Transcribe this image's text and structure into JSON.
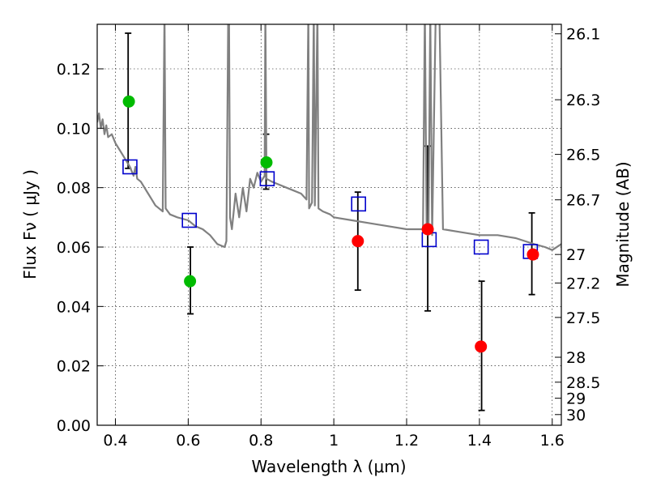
{
  "chart_data": {
    "type": "scatter",
    "xlabel": "Wavelength  λ (μm)",
    "ylabel": "Flux  Fν  ( μJy )",
    "ylabel_right": "Magnitude (AB)",
    "xlim": [
      0.35,
      1.625
    ],
    "ylim": [
      0.0,
      0.135
    ],
    "grid": true,
    "x_ticks": [
      0.4,
      0.6,
      0.8,
      1.0,
      1.2,
      1.4,
      1.6
    ],
    "x_tick_labels": [
      "0.4",
      "0.6",
      "0.8",
      "1",
      "1.2",
      "1.4",
      "1.6"
    ],
    "y_ticks": [
      0.0,
      0.02,
      0.04,
      0.06,
      0.08,
      0.1,
      0.12
    ],
    "y_tick_labels": [
      "0.00",
      "0.02",
      "0.04",
      "0.06",
      "0.08",
      "0.10",
      "0.12"
    ],
    "right_ticks": [
      {
        "label": "26.1",
        "flux": 0.1318
      },
      {
        "label": "26.3",
        "flux": 0.1096
      },
      {
        "label": "26.5",
        "flux": 0.0912
      },
      {
        "label": "26.7",
        "flux": 0.0759
      },
      {
        "label": "27",
        "flux": 0.0575
      },
      {
        "label": "27.2",
        "flux": 0.0479
      },
      {
        "label": "27.5",
        "flux": 0.0363
      },
      {
        "label": "28",
        "flux": 0.0229
      },
      {
        "label": "28.5",
        "flux": 0.0145
      },
      {
        "label": "29",
        "flux": 0.0091
      },
      {
        "label": "30",
        "flux": 0.0036
      }
    ],
    "series": [
      {
        "type": "errorbar",
        "color": "#000000",
        "points": [
          {
            "x": 0.435,
            "ylo": 0.0865,
            "yhi": 0.132
          },
          {
            "x": 0.606,
            "ylo": 0.0375,
            "yhi": 0.06
          },
          {
            "x": 0.814,
            "ylo": 0.0795,
            "yhi": 0.098
          },
          {
            "x": 1.066,
            "ylo": 0.0455,
            "yhi": 0.0785
          },
          {
            "x": 1.258,
            "ylo": 0.0385,
            "yhi": 0.094
          },
          {
            "x": 1.406,
            "ylo": 0.005,
            "yhi": 0.0485
          },
          {
            "x": 1.544,
            "ylo": 0.044,
            "yhi": 0.0715
          }
        ]
      },
      {
        "type": "line",
        "color": "#808080",
        "points": [
          [
            0.35,
            0.102
          ],
          [
            0.355,
            0.105
          ],
          [
            0.36,
            0.1
          ],
          [
            0.365,
            0.103
          ],
          [
            0.37,
            0.098
          ],
          [
            0.375,
            0.101
          ],
          [
            0.38,
            0.097
          ],
          [
            0.39,
            0.098
          ],
          [
            0.4,
            0.095
          ],
          [
            0.41,
            0.093
          ],
          [
            0.42,
            0.091
          ],
          [
            0.43,
            0.089
          ],
          [
            0.44,
            0.087
          ],
          [
            0.45,
            0.084
          ],
          [
            0.455,
            0.087
          ],
          [
            0.46,
            0.083
          ],
          [
            0.47,
            0.082
          ],
          [
            0.48,
            0.08
          ],
          [
            0.49,
            0.078
          ],
          [
            0.5,
            0.076
          ],
          [
            0.51,
            0.074
          ],
          [
            0.52,
            0.073
          ],
          [
            0.53,
            0.072
          ],
          [
            0.535,
            0.14
          ],
          [
            0.538,
            0.073
          ],
          [
            0.55,
            0.071
          ],
          [
            0.57,
            0.07
          ],
          [
            0.6,
            0.069
          ],
          [
            0.62,
            0.067
          ],
          [
            0.64,
            0.066
          ],
          [
            0.66,
            0.064
          ],
          [
            0.68,
            0.061
          ],
          [
            0.7,
            0.06
          ],
          [
            0.705,
            0.062
          ],
          [
            0.71,
            0.14
          ],
          [
            0.712,
            0.14
          ],
          [
            0.715,
            0.07
          ],
          [
            0.72,
            0.066
          ],
          [
            0.73,
            0.078
          ],
          [
            0.74,
            0.07
          ],
          [
            0.75,
            0.08
          ],
          [
            0.76,
            0.072
          ],
          [
            0.77,
            0.083
          ],
          [
            0.78,
            0.08
          ],
          [
            0.79,
            0.085
          ],
          [
            0.8,
            0.082
          ],
          [
            0.81,
            0.084
          ],
          [
            0.812,
            0.14
          ],
          [
            0.815,
            0.083
          ],
          [
            0.83,
            0.082
          ],
          [
            0.85,
            0.081
          ],
          [
            0.87,
            0.08
          ],
          [
            0.89,
            0.079
          ],
          [
            0.91,
            0.078
          ],
          [
            0.925,
            0.076
          ],
          [
            0.93,
            0.14
          ],
          [
            0.932,
            0.073
          ],
          [
            0.94,
            0.075
          ],
          [
            0.945,
            0.14
          ],
          [
            0.948,
            0.074
          ],
          [
            0.955,
            0.14
          ],
          [
            0.958,
            0.073
          ],
          [
            0.97,
            0.072
          ],
          [
            0.99,
            0.071
          ],
          [
            1.0,
            0.07
          ],
          [
            1.05,
            0.069
          ],
          [
            1.1,
            0.068
          ],
          [
            1.15,
            0.067
          ],
          [
            1.2,
            0.066
          ],
          [
            1.245,
            0.066
          ],
          [
            1.25,
            0.14
          ],
          [
            1.255,
            0.065
          ],
          [
            1.26,
            0.064
          ],
          [
            1.265,
            0.14
          ],
          [
            1.27,
            0.064
          ],
          [
            1.28,
            0.14
          ],
          [
            1.29,
            0.14
          ],
          [
            1.3,
            0.066
          ],
          [
            1.35,
            0.065
          ],
          [
            1.4,
            0.064
          ],
          [
            1.45,
            0.064
          ],
          [
            1.5,
            0.063
          ],
          [
            1.55,
            0.061
          ],
          [
            1.58,
            0.06
          ],
          [
            1.6,
            0.059
          ],
          [
            1.625,
            0.061
          ]
        ]
      },
      {
        "type": "scatter",
        "marker": "square",
        "color": "#0000cc",
        "points": [
          [
            0.44,
            0.087
          ],
          [
            0.603,
            0.069
          ],
          [
            0.817,
            0.083
          ],
          [
            1.068,
            0.0745
          ],
          [
            1.262,
            0.0625
          ],
          [
            1.405,
            0.06
          ],
          [
            1.54,
            0.0585
          ]
        ]
      },
      {
        "type": "scatter",
        "marker": "circle",
        "color": "#00bb00",
        "points": [
          [
            0.437,
            0.109
          ],
          [
            0.605,
            0.0485
          ],
          [
            0.815,
            0.0885
          ]
        ]
      },
      {
        "type": "scatter",
        "marker": "circle",
        "color": "#ff0000",
        "points": [
          [
            1.066,
            0.062
          ],
          [
            1.258,
            0.066
          ],
          [
            1.404,
            0.0265
          ],
          [
            1.547,
            0.0575
          ]
        ]
      }
    ]
  }
}
